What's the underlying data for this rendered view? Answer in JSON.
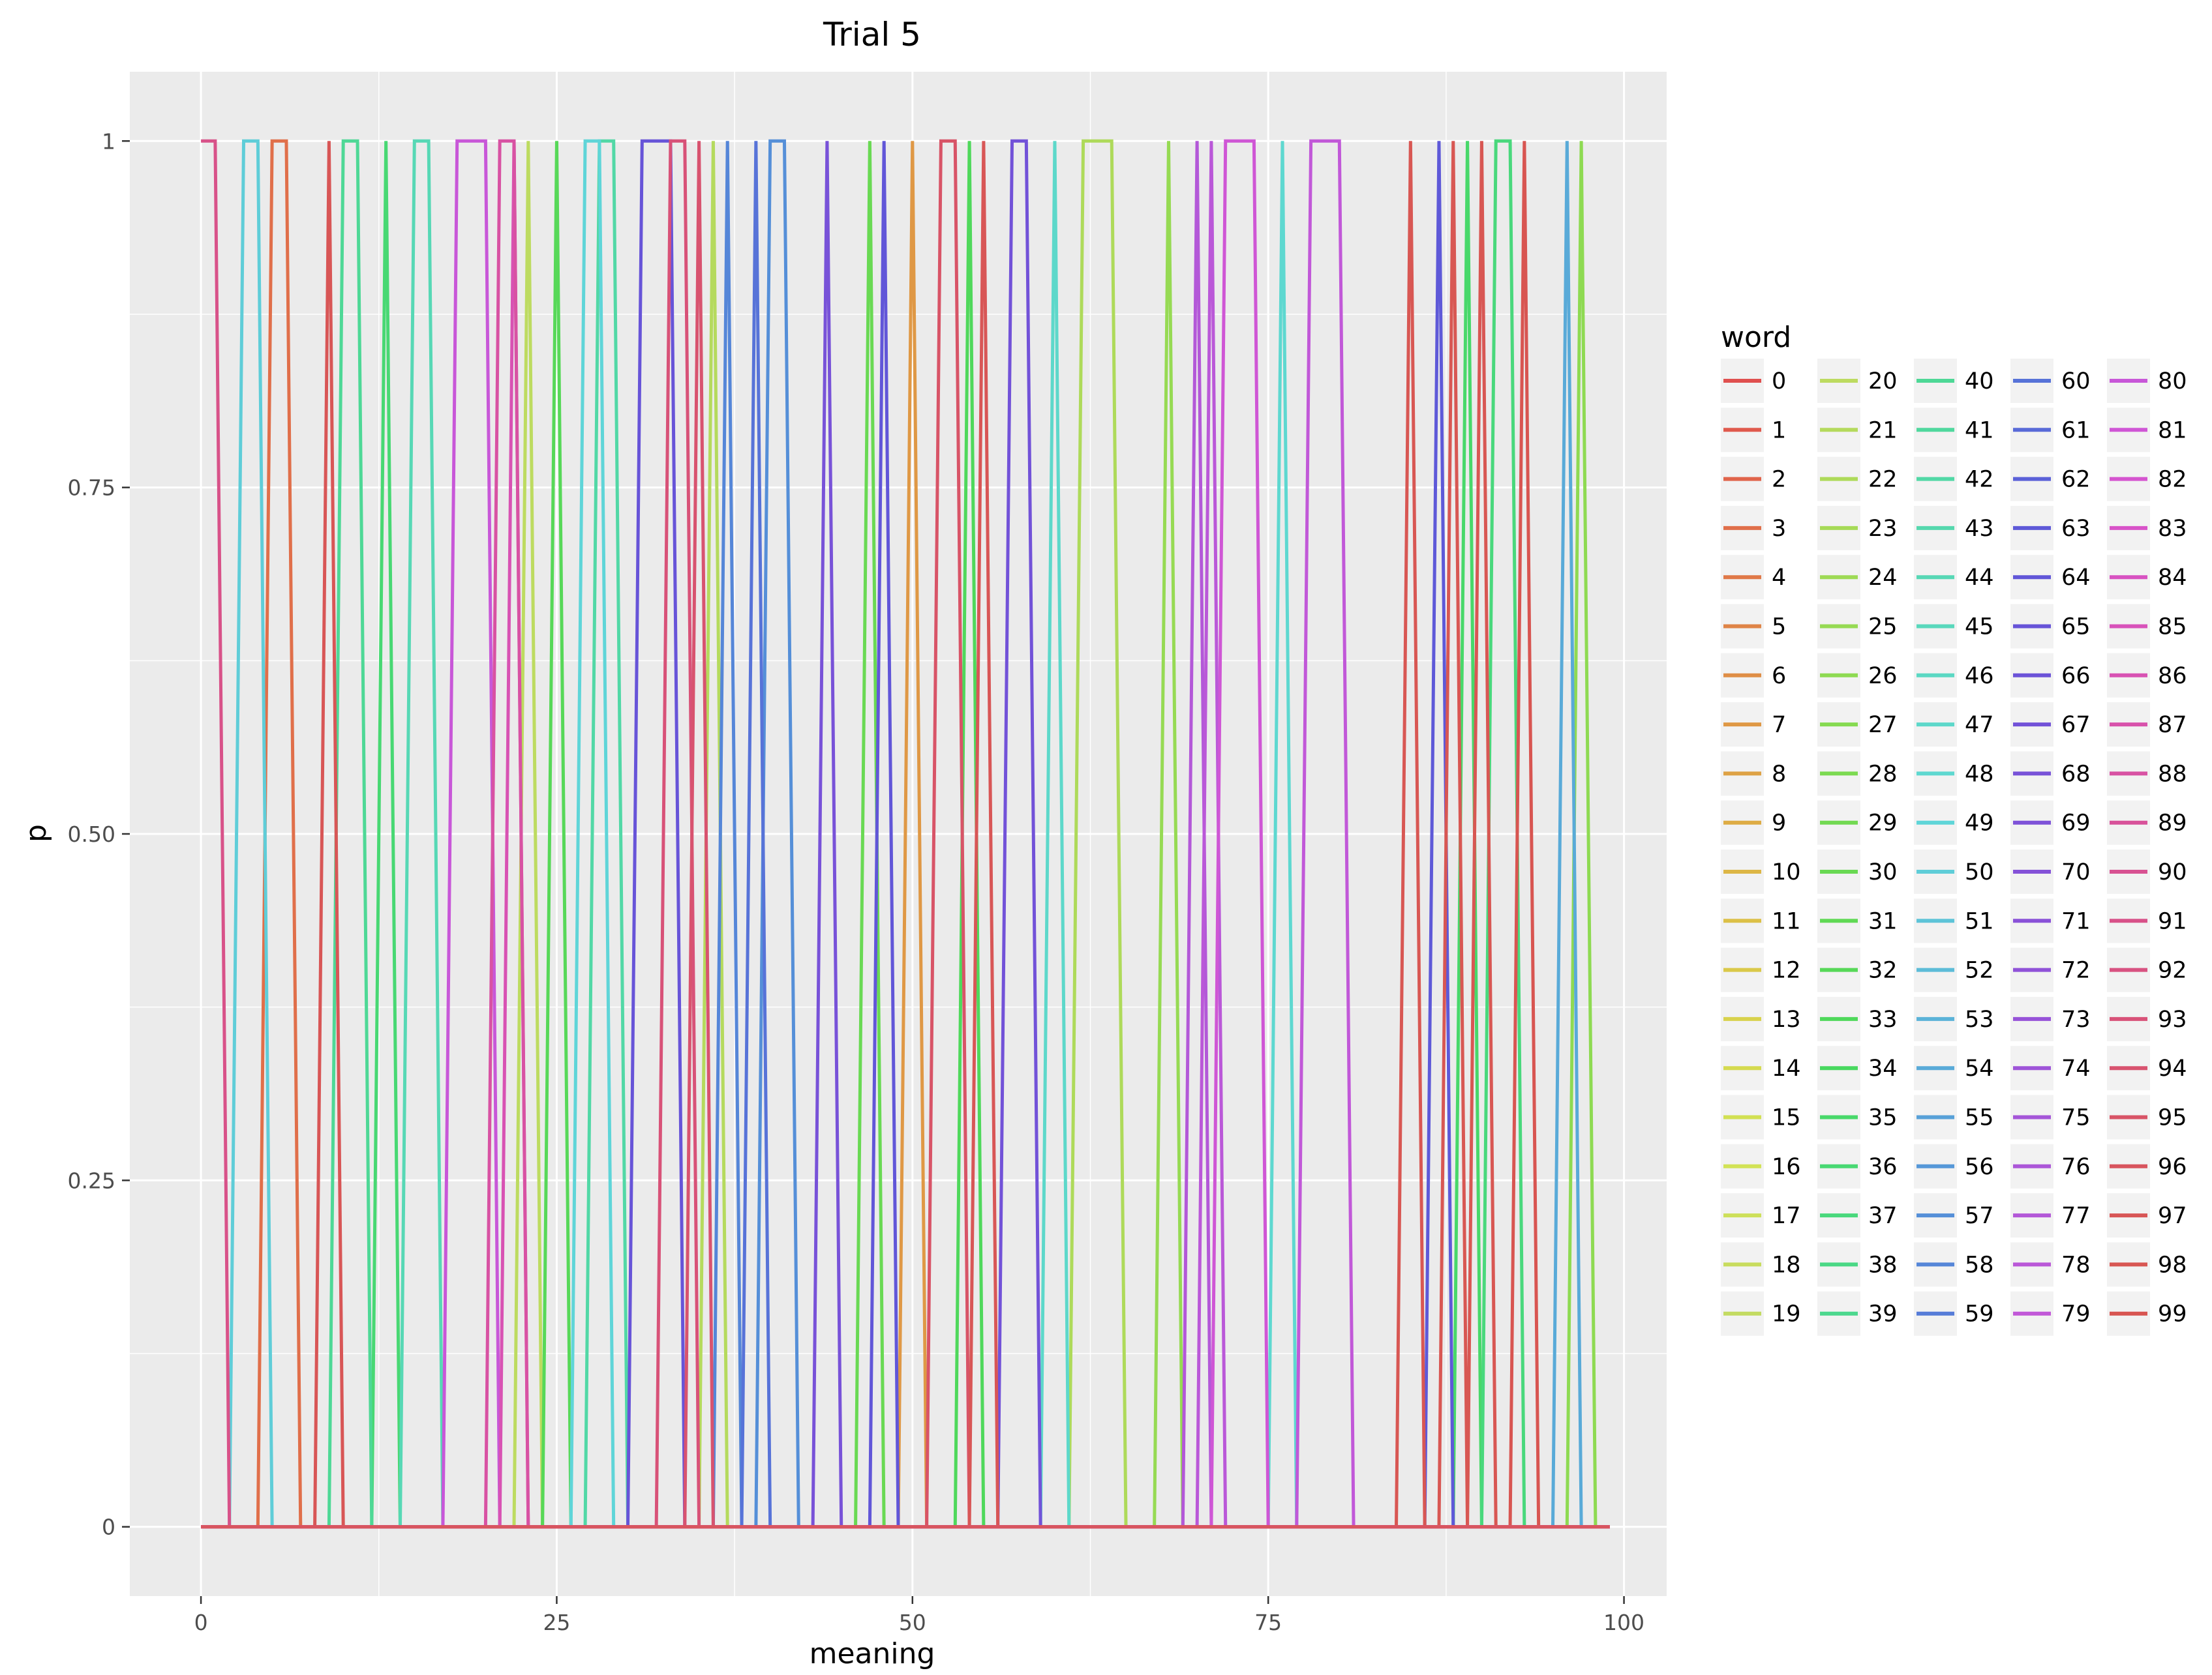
{
  "chart_data": {
    "type": "line",
    "title": "Trial 5",
    "xlabel": "meaning",
    "ylabel": "p",
    "xlim": [
      -5,
      103
    ],
    "ylim": [
      -0.05,
      1.05
    ],
    "x_ticks": [
      0,
      25,
      50,
      75,
      100
    ],
    "x_tick_labels": [
      "0",
      "25",
      "50",
      "75",
      "100"
    ],
    "y_ticks": [
      0,
      0.25,
      0.5,
      0.75,
      1
    ],
    "y_tick_labels": [
      "0",
      "0.25",
      "0.50",
      "0.75",
      "1"
    ],
    "x_range": [
      0,
      99
    ],
    "grid": true,
    "legend": {
      "title": "word",
      "placement": "right",
      "columns": 5
    },
    "value_encoding": "series[i].meanings lists the meanings (0-99) where word i has p = 1; p = 0 at every other meaning",
    "series": [
      {
        "name": "0",
        "color": "#E0504F",
        "meanings": []
      },
      {
        "name": "1",
        "color": "#E05A4D",
        "meanings": []
      },
      {
        "name": "2",
        "color": "#E0644B",
        "meanings": []
      },
      {
        "name": "3",
        "color": "#E06F4A",
        "meanings": [
          5,
          6
        ]
      },
      {
        "name": "4",
        "color": "#E07948",
        "meanings": []
      },
      {
        "name": "5",
        "color": "#DF8447",
        "meanings": []
      },
      {
        "name": "6",
        "color": "#DF8E46",
        "meanings": []
      },
      {
        "name": "7",
        "color": "#DF9845",
        "meanings": [
          50
        ]
      },
      {
        "name": "8",
        "color": "#DEA245",
        "meanings": []
      },
      {
        "name": "9",
        "color": "#DEAC45",
        "meanings": []
      },
      {
        "name": "10",
        "color": "#DDB646",
        "meanings": []
      },
      {
        "name": "11",
        "color": "#DCC047",
        "meanings": []
      },
      {
        "name": "12",
        "color": "#DAC949",
        "meanings": []
      },
      {
        "name": "13",
        "color": "#D8D24C",
        "meanings": []
      },
      {
        "name": "14",
        "color": "#D5DA4F",
        "meanings": []
      },
      {
        "name": "15",
        "color": "#D2E052",
        "meanings": []
      },
      {
        "name": "16",
        "color": "#D2E356",
        "meanings": []
      },
      {
        "name": "17",
        "color": "#CDE05A",
        "meanings": []
      },
      {
        "name": "18",
        "color": "#C8DC5E",
        "meanings": []
      },
      {
        "name": "19",
        "color": "#C3DB62",
        "meanings": []
      },
      {
        "name": "20",
        "color": "#BDDB60",
        "meanings": [
          23
        ]
      },
      {
        "name": "21",
        "color": "#B5DA5D",
        "meanings": [
          36
        ]
      },
      {
        "name": "22",
        "color": "#AEDA5A",
        "meanings": [
          62,
          63,
          64
        ]
      },
      {
        "name": "23",
        "color": "#A6DA57",
        "meanings": []
      },
      {
        "name": "24",
        "color": "#9EDA55",
        "meanings": []
      },
      {
        "name": "25",
        "color": "#96DA53",
        "meanings": [
          68
        ]
      },
      {
        "name": "26",
        "color": "#8EDA52",
        "meanings": [
          97
        ]
      },
      {
        "name": "27",
        "color": "#85DA51",
        "meanings": []
      },
      {
        "name": "28",
        "color": "#7CDA51",
        "meanings": []
      },
      {
        "name": "29",
        "color": "#72D952",
        "meanings": []
      },
      {
        "name": "30",
        "color": "#69D953",
        "meanings": [
          47
        ]
      },
      {
        "name": "31",
        "color": "#60D955",
        "meanings": []
      },
      {
        "name": "32",
        "color": "#57D858",
        "meanings": [
          25
        ]
      },
      {
        "name": "33",
        "color": "#4FD85B",
        "meanings": [
          54
        ]
      },
      {
        "name": "34",
        "color": "#48D85F",
        "meanings": []
      },
      {
        "name": "35",
        "color": "#48D86A",
        "meanings": [
          89
        ]
      },
      {
        "name": "36",
        "color": "#48D873",
        "meanings": [
          13
        ]
      },
      {
        "name": "37",
        "color": "#49D87C",
        "meanings": [
          91,
          92
        ]
      },
      {
        "name": "38",
        "color": "#4AD885",
        "meanings": []
      },
      {
        "name": "39",
        "color": "#4CD88E",
        "meanings": []
      },
      {
        "name": "40",
        "color": "#4ED896",
        "meanings": [
          10,
          11
        ]
      },
      {
        "name": "41",
        "color": "#50D89E",
        "meanings": []
      },
      {
        "name": "42",
        "color": "#52D8A6",
        "meanings": [
          28,
          29
        ]
      },
      {
        "name": "43",
        "color": "#55D8AE",
        "meanings": []
      },
      {
        "name": "44",
        "color": "#57D8B5",
        "meanings": [
          15,
          16
        ]
      },
      {
        "name": "45",
        "color": "#59D8BC",
        "meanings": []
      },
      {
        "name": "46",
        "color": "#5BD8C3",
        "meanings": []
      },
      {
        "name": "47",
        "color": "#5DD8CA",
        "meanings": [
          60
        ]
      },
      {
        "name": "48",
        "color": "#5ED8D0",
        "meanings": [
          76
        ]
      },
      {
        "name": "49",
        "color": "#5FD5D8",
        "meanings": [
          27,
          28
        ]
      },
      {
        "name": "50",
        "color": "#5FCDD8",
        "meanings": [
          3,
          4
        ]
      },
      {
        "name": "51",
        "color": "#5EC4D8",
        "meanings": []
      },
      {
        "name": "52",
        "color": "#5DBCD8",
        "meanings": []
      },
      {
        "name": "53",
        "color": "#5BB3D8",
        "meanings": []
      },
      {
        "name": "54",
        "color": "#59AAD8",
        "meanings": [
          96
        ]
      },
      {
        "name": "55",
        "color": "#58A1D8",
        "meanings": []
      },
      {
        "name": "56",
        "color": "#5698D8",
        "meanings": []
      },
      {
        "name": "57",
        "color": "#558FD8",
        "meanings": [
          40,
          41
        ]
      },
      {
        "name": "58",
        "color": "#5586D8",
        "meanings": [
          37
        ]
      },
      {
        "name": "59",
        "color": "#567CD8",
        "meanings": []
      },
      {
        "name": "60",
        "color": "#5773D8",
        "meanings": [
          39
        ]
      },
      {
        "name": "61",
        "color": "#596AD8",
        "meanings": []
      },
      {
        "name": "62",
        "color": "#5B61D8",
        "meanings": []
      },
      {
        "name": "63",
        "color": "#5E59D8",
        "meanings": [
          87
        ]
      },
      {
        "name": "64",
        "color": "#6156D8",
        "meanings": [
          48
        ]
      },
      {
        "name": "65",
        "color": "#6754D8",
        "meanings": [
          31,
          32,
          33
        ]
      },
      {
        "name": "66",
        "color": "#6C53D8",
        "meanings": []
      },
      {
        "name": "67",
        "color": "#7252D8",
        "meanings": [
          57,
          58
        ]
      },
      {
        "name": "68",
        "color": "#7852D8",
        "meanings": [
          44
        ]
      },
      {
        "name": "69",
        "color": "#7E52D8",
        "meanings": []
      },
      {
        "name": "70",
        "color": "#8452D8",
        "meanings": []
      },
      {
        "name": "71",
        "color": "#8A52D8",
        "meanings": []
      },
      {
        "name": "72",
        "color": "#9052D8",
        "meanings": []
      },
      {
        "name": "73",
        "color": "#9753D8",
        "meanings": []
      },
      {
        "name": "74",
        "color": "#9E54D8",
        "meanings": []
      },
      {
        "name": "75",
        "color": "#A556D8",
        "meanings": []
      },
      {
        "name": "76",
        "color": "#AC57D8",
        "meanings": []
      },
      {
        "name": "77",
        "color": "#B358D8",
        "meanings": [
          70
        ]
      },
      {
        "name": "78",
        "color": "#BA58D8",
        "meanings": [
          71
        ]
      },
      {
        "name": "79",
        "color": "#C158D8",
        "meanings": [
          78,
          79,
          80
        ]
      },
      {
        "name": "80",
        "color": "#C857D8",
        "meanings": [
          18,
          19,
          20
        ]
      },
      {
        "name": "81",
        "color": "#CF56D5",
        "meanings": [
          72,
          73,
          74
        ]
      },
      {
        "name": "82",
        "color": "#D555CF",
        "meanings": []
      },
      {
        "name": "83",
        "color": "#D853C8",
        "meanings": []
      },
      {
        "name": "84",
        "color": "#D852C1",
        "meanings": []
      },
      {
        "name": "85",
        "color": "#D852BA",
        "meanings": []
      },
      {
        "name": "86",
        "color": "#D852B3",
        "meanings": [
          22
        ]
      },
      {
        "name": "87",
        "color": "#D852AB",
        "meanings": []
      },
      {
        "name": "88",
        "color": "#D852A3",
        "meanings": [
          21,
          22
        ]
      },
      {
        "name": "89",
        "color": "#D8529A",
        "meanings": []
      },
      {
        "name": "90",
        "color": "#D85292",
        "meanings": []
      },
      {
        "name": "91",
        "color": "#D85289",
        "meanings": [
          0,
          1
        ]
      },
      {
        "name": "92",
        "color": "#D85281",
        "meanings": []
      },
      {
        "name": "93",
        "color": "#D85278",
        "meanings": [
          33,
          34
        ]
      },
      {
        "name": "94",
        "color": "#D8536F",
        "meanings": [
          35
        ]
      },
      {
        "name": "95",
        "color": "#D85467",
        "meanings": [
          52,
          53
        ]
      },
      {
        "name": "96",
        "color": "#D8555E",
        "meanings": []
      },
      {
        "name": "97",
        "color": "#D85656",
        "meanings": [
          9,
          55
        ]
      },
      {
        "name": "98",
        "color": "#D85753",
        "meanings": [
          85,
          88,
          90
        ]
      },
      {
        "name": "99",
        "color": "#D85551",
        "meanings": [
          93
        ]
      }
    ]
  }
}
